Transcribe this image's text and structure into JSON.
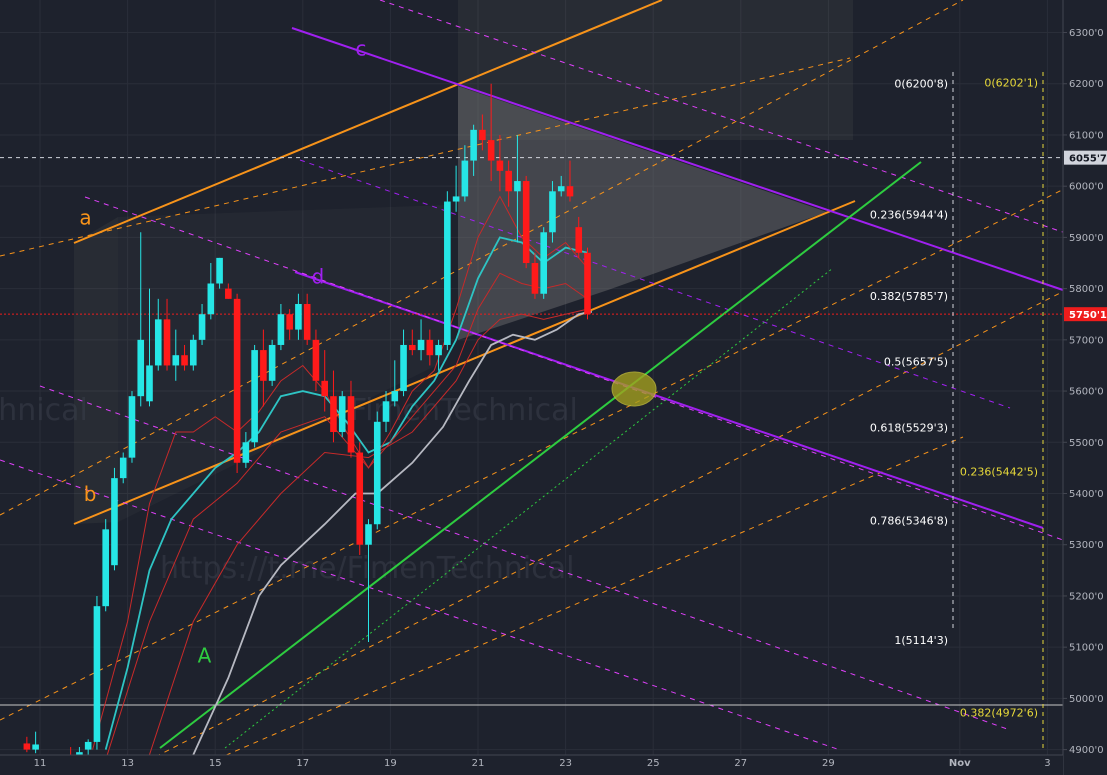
{
  "chart_data": {
    "type": "candlestick",
    "ylim": [
      4880,
      6340
    ],
    "xlim": [
      10.4,
      3.7
    ],
    "x_ticks": [
      {
        "day": 11,
        "label": "11"
      },
      {
        "day": 13,
        "label": "13"
      },
      {
        "day": 15,
        "label": "15"
      },
      {
        "day": 17,
        "label": "17"
      },
      {
        "day": 19,
        "label": "19"
      },
      {
        "day": 21,
        "label": "21"
      },
      {
        "day": 23,
        "label": "23"
      },
      {
        "day": 25,
        "label": "25"
      },
      {
        "day": 27,
        "label": "27"
      },
      {
        "day": 29,
        "label": "29"
      },
      {
        "day": 32,
        "label": "Nov"
      },
      {
        "day": 34,
        "label": "3"
      }
    ],
    "y_ticks": [
      "4900'0",
      "5000'0",
      "5100'0",
      "5200'0",
      "5300'0",
      "5400'0",
      "5500'0",
      "5600'0",
      "5700'0",
      "5800'0",
      "5900'0",
      "6000'0",
      "6100'0",
      "6200'0",
      "6300'0"
    ],
    "y_tick_values": [
      4900,
      5000,
      5100,
      5200,
      5300,
      5400,
      5500,
      5600,
      5700,
      5800,
      5900,
      6000,
      6100,
      6200,
      6300
    ],
    "price_tags": [
      {
        "value": 6055.7,
        "label": "6055'7",
        "bg": "#d1d4dc",
        "fg": "#131722"
      },
      {
        "value": 5750.1,
        "label": "5750'1",
        "bg": "#ef1c1c",
        "fg": "#ffffff"
      }
    ],
    "candles": [
      [
        10.7,
        4912,
        4925,
        4895,
        4900
      ],
      [
        10.9,
        4900,
        4935,
        4893,
        4910
      ],
      [
        11.7,
        4890,
        4905,
        4880,
        4888
      ],
      [
        11.9,
        4888,
        4905,
        4880,
        4895
      ],
      [
        12.1,
        4900,
        4920,
        4880,
        4915
      ],
      [
        12.3,
        4915,
        5200,
        4900,
        5180
      ],
      [
        12.5,
        5180,
        5350,
        5170,
        5330
      ],
      [
        12.7,
        5260,
        5450,
        5250,
        5430
      ],
      [
        12.9,
        5430,
        5480,
        5420,
        5470
      ],
      [
        13.1,
        5470,
        5600,
        5460,
        5590
      ],
      [
        13.3,
        5590,
        5910,
        5570,
        5700
      ],
      [
        13.5,
        5580,
        5800,
        5570,
        5650
      ],
      [
        13.7,
        5650,
        5780,
        5640,
        5740
      ],
      [
        13.9,
        5740,
        5780,
        5640,
        5650
      ],
      [
        14.1,
        5650,
        5720,
        5620,
        5670
      ],
      [
        14.3,
        5670,
        5690,
        5640,
        5650
      ],
      [
        14.5,
        5650,
        5710,
        5640,
        5700
      ],
      [
        14.7,
        5700,
        5770,
        5690,
        5750
      ],
      [
        14.9,
        5750,
        5850,
        5740,
        5810
      ],
      [
        15.1,
        5810,
        5860,
        5800,
        5860
      ],
      [
        15.3,
        5800,
        5810,
        5780,
        5780
      ],
      [
        15.5,
        5780,
        5790,
        5440,
        5460
      ],
      [
        15.7,
        5460,
        5520,
        5450,
        5500
      ],
      [
        15.9,
        5500,
        5690,
        5490,
        5680
      ],
      [
        16.1,
        5680,
        5720,
        5570,
        5620
      ],
      [
        16.3,
        5620,
        5700,
        5610,
        5690
      ],
      [
        16.5,
        5690,
        5770,
        5680,
        5750
      ],
      [
        16.7,
        5750,
        5760,
        5700,
        5720
      ],
      [
        16.9,
        5720,
        5790,
        5700,
        5770
      ],
      [
        17.1,
        5770,
        5790,
        5690,
        5700
      ],
      [
        17.3,
        5700,
        5720,
        5600,
        5620
      ],
      [
        17.5,
        5620,
        5680,
        5560,
        5590
      ],
      [
        17.7,
        5590,
        5640,
        5500,
        5520
      ],
      [
        17.9,
        5520,
        5600,
        5510,
        5590
      ],
      [
        18.1,
        5590,
        5620,
        5470,
        5480
      ],
      [
        18.3,
        5480,
        5500,
        5280,
        5300
      ],
      [
        18.5,
        5300,
        5350,
        5110,
        5340
      ],
      [
        18.7,
        5340,
        5560,
        5330,
        5540
      ],
      [
        18.9,
        5540,
        5600,
        5520,
        5580
      ],
      [
        19.1,
        5580,
        5660,
        5570,
        5600
      ],
      [
        19.3,
        5600,
        5720,
        5590,
        5690
      ],
      [
        19.5,
        5690,
        5720,
        5670,
        5680
      ],
      [
        19.7,
        5680,
        5740,
        5660,
        5700
      ],
      [
        19.9,
        5700,
        5720,
        5650,
        5670
      ],
      [
        20.1,
        5670,
        5700,
        5640,
        5690
      ],
      [
        20.3,
        5690,
        5990,
        5680,
        5970
      ],
      [
        20.5,
        5970,
        6040,
        5950,
        5980
      ],
      [
        20.7,
        5980,
        6080,
        5970,
        6050
      ],
      [
        20.9,
        6050,
        6120,
        6020,
        6110
      ],
      [
        21.1,
        6110,
        6140,
        6070,
        6090
      ],
      [
        21.3,
        6090,
        6200,
        6010,
        6050
      ],
      [
        21.5,
        6050,
        6100,
        5990,
        6030
      ],
      [
        21.7,
        6030,
        6050,
        5960,
        5990
      ],
      [
        21.9,
        5990,
        6100,
        5890,
        6010
      ],
      [
        22.1,
        6010,
        6020,
        5840,
        5850
      ],
      [
        22.3,
        5850,
        5870,
        5780,
        5790
      ],
      [
        22.5,
        5790,
        5920,
        5780,
        5910
      ],
      [
        22.7,
        5910,
        6010,
        5890,
        5990
      ],
      [
        22.9,
        5990,
        6020,
        5980,
        6000
      ],
      [
        23.1,
        6000,
        6050,
        5970,
        5980
      ],
      [
        23.3,
        5920,
        5940,
        5860,
        5870
      ],
      [
        23.5,
        5870,
        5880,
        5740,
        5750
      ]
    ],
    "moving_averages": [
      {
        "color": "#2ec4c4",
        "width": 1.8,
        "points": [
          [
            12.5,
            4900
          ],
          [
            13,
            5060
          ],
          [
            13.5,
            5250
          ],
          [
            14,
            5350
          ],
          [
            14.5,
            5400
          ],
          [
            15,
            5450
          ],
          [
            15.5,
            5480
          ],
          [
            16,
            5520
          ],
          [
            16.5,
            5590
          ],
          [
            17,
            5600
          ],
          [
            17.5,
            5590
          ],
          [
            18,
            5540
          ],
          [
            18.5,
            5480
          ],
          [
            19,
            5500
          ],
          [
            19.5,
            5570
          ],
          [
            20,
            5620
          ],
          [
            20.5,
            5700
          ],
          [
            21,
            5820
          ],
          [
            21.5,
            5900
          ],
          [
            22,
            5890
          ],
          [
            22.5,
            5850
          ],
          [
            23,
            5880
          ],
          [
            23.5,
            5870
          ]
        ]
      },
      {
        "color": "#c72a2a",
        "width": 1,
        "points": [
          [
            12.2,
            4900
          ],
          [
            13,
            5150
          ],
          [
            13.5,
            5380
          ],
          [
            14.1,
            5520
          ],
          [
            14.5,
            5520
          ],
          [
            15,
            5550
          ],
          [
            15.5,
            5520
          ],
          [
            16,
            5560
          ],
          [
            16.5,
            5620
          ],
          [
            17,
            5650
          ],
          [
            17.5,
            5600
          ],
          [
            18,
            5520
          ],
          [
            18.5,
            5450
          ],
          [
            19,
            5520
          ],
          [
            19.5,
            5600
          ],
          [
            20,
            5640
          ],
          [
            20.5,
            5760
          ],
          [
            21,
            5900
          ],
          [
            21.5,
            5980
          ],
          [
            22,
            5900
          ],
          [
            22.5,
            5860
          ],
          [
            23,
            5890
          ],
          [
            23.5,
            5840
          ]
        ]
      },
      {
        "color": "#c72a2a",
        "width": 1,
        "points": [
          [
            12.5,
            4880
          ],
          [
            13.5,
            5150
          ],
          [
            14.5,
            5350
          ],
          [
            15.5,
            5420
          ],
          [
            16.5,
            5520
          ],
          [
            17.5,
            5550
          ],
          [
            18.5,
            5450
          ],
          [
            19.5,
            5550
          ],
          [
            20.5,
            5650
          ],
          [
            21,
            5760
          ],
          [
            21.5,
            5830
          ],
          [
            22,
            5810
          ],
          [
            22.5,
            5800
          ],
          [
            23,
            5810
          ],
          [
            23.5,
            5780
          ]
        ]
      },
      {
        "color": "#c72a2a",
        "width": 1,
        "points": [
          [
            13.5,
            4890
          ],
          [
            14.5,
            5150
          ],
          [
            15.5,
            5300
          ],
          [
            16.5,
            5400
          ],
          [
            17.5,
            5480
          ],
          [
            18.5,
            5470
          ],
          [
            19.5,
            5520
          ],
          [
            20.5,
            5620
          ],
          [
            21,
            5700
          ],
          [
            21.5,
            5740
          ],
          [
            22,
            5750
          ],
          [
            22.5,
            5740
          ],
          [
            23.5,
            5760
          ]
        ]
      },
      {
        "color": "#b7b9c2",
        "width": 1.8,
        "points": [
          [
            14.5,
            4890
          ],
          [
            15.3,
            5040
          ],
          [
            16,
            5200
          ],
          [
            16.5,
            5260
          ],
          [
            17.5,
            5340
          ],
          [
            18.2,
            5400
          ],
          [
            18.7,
            5400
          ],
          [
            19.5,
            5460
          ],
          [
            20.2,
            5530
          ],
          [
            20.8,
            5620
          ],
          [
            21.3,
            5690
          ],
          [
            21.8,
            5710
          ],
          [
            22.3,
            5700
          ],
          [
            22.8,
            5720
          ],
          [
            23.3,
            5750
          ],
          [
            23.6,
            5755
          ]
        ]
      }
    ],
    "labels": [
      {
        "text": "a",
        "x": 11.9,
        "y": 5925,
        "color": "#f7931a"
      },
      {
        "text": "b",
        "x": 12.0,
        "y": 5385,
        "color": "#f7931a"
      },
      {
        "text": "c",
        "x": 18.2,
        "y": 6255,
        "color": "#a020f0"
      },
      {
        "text": "d",
        "x": 17.2,
        "y": 5810,
        "color": "#a020f0"
      },
      {
        "text": "A",
        "x": 14.6,
        "y": 5070,
        "color": "#2ecc40"
      }
    ],
    "fib_left": [
      {
        "label": "0(6200'8)",
        "value": 6200.8
      },
      {
        "label": "0.236(5944'4)",
        "value": 5944.4
      },
      {
        "label": "0.382(5785'7)",
        "value": 5785.7
      },
      {
        "label": "0.5(5657'5)",
        "value": 5657.5
      },
      {
        "label": "0.618(5529'3)",
        "value": 5529.3
      },
      {
        "label": "0.786(5346'8)",
        "value": 5346.8
      },
      {
        "label": "1(5114'3)",
        "value": 5114.3
      }
    ],
    "fib_right": [
      {
        "label": "0(6202'1)",
        "value": 6202.1
      },
      {
        "label": "0.236(5442'5)",
        "value": 5442.5
      },
      {
        "label": "0.382(4972'6)",
        "value": 4972.6
      }
    ],
    "watermark": "https://t.me/FimenTechnical",
    "watermark_left": "FimenTechnical"
  },
  "colors": {
    "bg": "#1e222d",
    "up": "#26e6e6",
    "down": "#ff1a1a",
    "orange": "#f7931a",
    "purple": "#a020f0",
    "magenta": "#e040fb",
    "green": "#2ecc40",
    "grid": "#2a2e39",
    "axis": "#b2b5be"
  }
}
